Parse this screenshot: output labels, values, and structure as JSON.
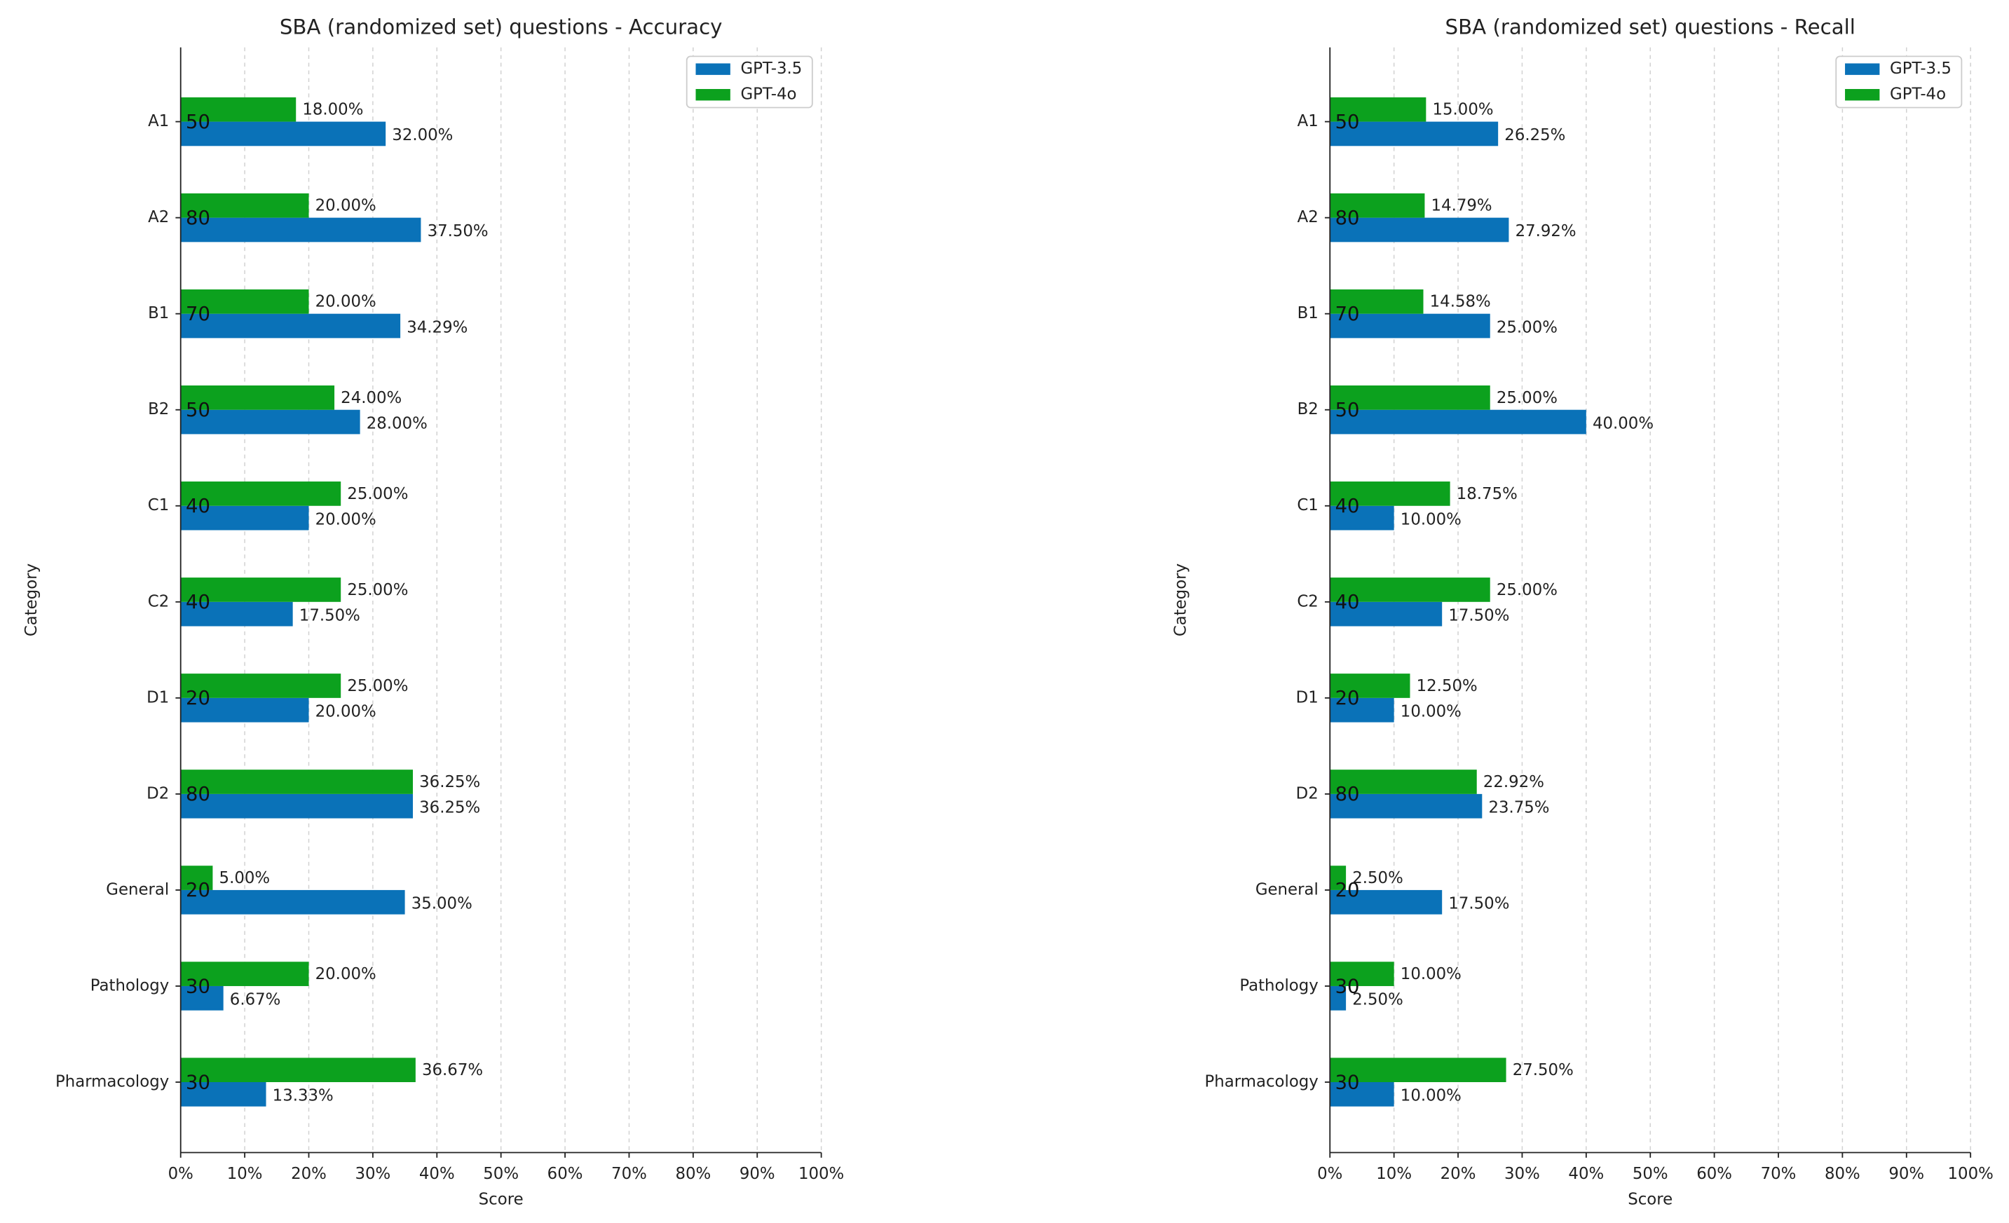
{
  "chart_data": [
    {
      "type": "barh",
      "title": "SBA (randomized set) questions - Accuracy",
      "x_label": "Score",
      "y_label": "Category",
      "categories": [
        "A1",
        "A2",
        "B1",
        "B2",
        "C1",
        "C2",
        "D1",
        "D2",
        "General",
        "Pathology",
        "Pharmacology"
      ],
      "n": [
        50,
        80,
        70,
        50,
        40,
        40,
        20,
        80,
        20,
        30,
        30
      ],
      "series": [
        {
          "name": "GPT-3.5",
          "color": "#0a72b8",
          "values": [
            32,
            37.5,
            34.29,
            28,
            20,
            17.5,
            20,
            36.25,
            35,
            6.67,
            13.33
          ],
          "value_labels": [
            "32.00%",
            "37.50%",
            "34.29%",
            "28.00%",
            "20.00%",
            "17.50%",
            "20.00%",
            "36.25%",
            "35.00%",
            "6.67%",
            "13.33%"
          ]
        },
        {
          "name": "GPT-4o",
          "color": "#0ca11e",
          "values": [
            18,
            20,
            20,
            24,
            25,
            25,
            25,
            36.25,
            5,
            20,
            36.67
          ],
          "value_labels": [
            "18.00%",
            "20.00%",
            "20.00%",
            "24.00%",
            "25.00%",
            "25.00%",
            "25.00%",
            "36.25%",
            "5.00%",
            "20.00%",
            "36.67%"
          ]
        }
      ],
      "xlim": [
        0,
        100
      ],
      "xticks": [
        {
          "value": 0,
          "label": "0%"
        },
        {
          "value": 10,
          "label": "10%"
        },
        {
          "value": 20,
          "label": "20%"
        },
        {
          "value": 30,
          "label": "30%"
        },
        {
          "value": 40,
          "label": "40%"
        },
        {
          "value": 50,
          "label": "50%"
        },
        {
          "value": 60,
          "label": "60%"
        },
        {
          "value": 70,
          "label": "70%"
        },
        {
          "value": 80,
          "label": "80%"
        },
        {
          "value": 90,
          "label": "90%"
        },
        {
          "value": 100,
          "label": "100%"
        }
      ],
      "grid": true,
      "legend": "upper right"
    },
    {
      "type": "barh",
      "title": "SBA (randomized set) questions - Recall",
      "x_label": "Score",
      "y_label": "Category",
      "categories": [
        "A1",
        "A2",
        "B1",
        "B2",
        "C1",
        "C2",
        "D1",
        "D2",
        "General",
        "Pathology",
        "Pharmacology"
      ],
      "n": [
        50,
        80,
        70,
        50,
        40,
        40,
        20,
        80,
        20,
        30,
        30
      ],
      "series": [
        {
          "name": "GPT-3.5",
          "color": "#0a72b8",
          "values": [
            26.25,
            27.92,
            25,
            40,
            10,
            17.5,
            10,
            23.75,
            17.5,
            2.5,
            10
          ],
          "value_labels": [
            "26.25%",
            "27.92%",
            "25.00%",
            "40.00%",
            "10.00%",
            "17.50%",
            "10.00%",
            "23.75%",
            "17.50%",
            "2.50%",
            "10.00%"
          ]
        },
        {
          "name": "GPT-4o",
          "color": "#0ca11e",
          "values": [
            15,
            14.79,
            14.58,
            25,
            18.75,
            25,
            12.5,
            22.92,
            2.5,
            10,
            27.5
          ],
          "value_labels": [
            "15.00%",
            "14.79%",
            "14.58%",
            "25.00%",
            "18.75%",
            "25.00%",
            "12.50%",
            "22.92%",
            "2.50%",
            "10.00%",
            "27.50%"
          ]
        }
      ],
      "xlim": [
        0,
        100
      ],
      "xticks": [
        {
          "value": 0,
          "label": "0%"
        },
        {
          "value": 10,
          "label": "10%"
        },
        {
          "value": 20,
          "label": "20%"
        },
        {
          "value": 30,
          "label": "30%"
        },
        {
          "value": 40,
          "label": "40%"
        },
        {
          "value": 50,
          "label": "50%"
        },
        {
          "value": 60,
          "label": "60%"
        },
        {
          "value": 70,
          "label": "70%"
        },
        {
          "value": 80,
          "label": "80%"
        },
        {
          "value": 90,
          "label": "90%"
        },
        {
          "value": 100,
          "label": "100%"
        }
      ],
      "grid": true,
      "legend": "upper right"
    }
  ]
}
